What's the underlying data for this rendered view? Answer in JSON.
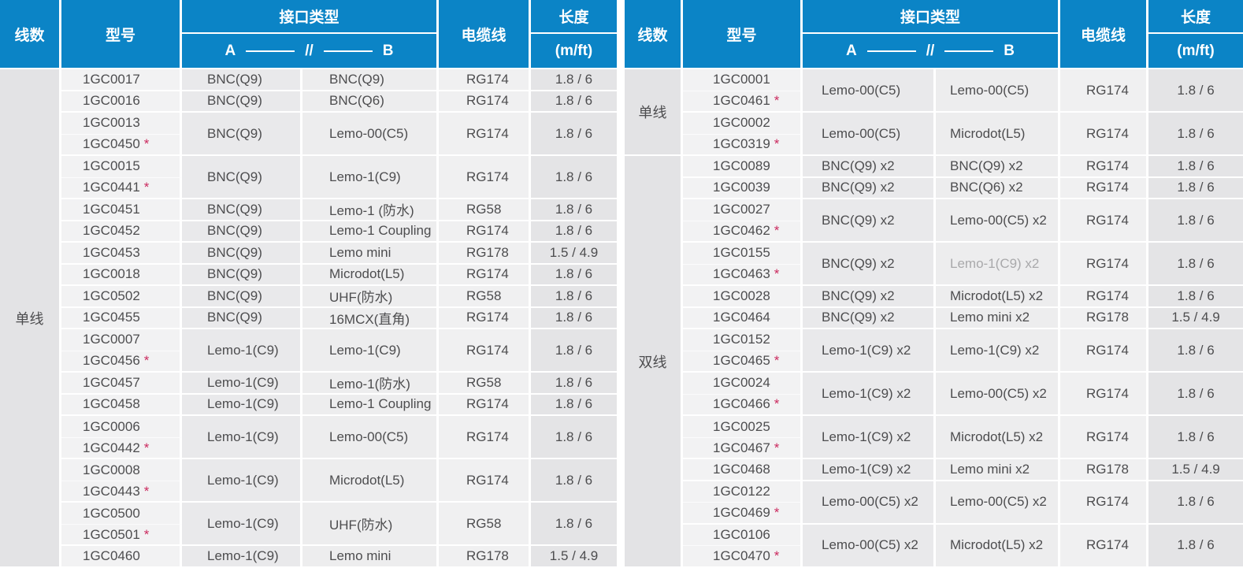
{
  "colors": {
    "header_bg": "#0b84c6",
    "header_text": "#ffffff",
    "body_text": "#4d4d4f",
    "muted_text": "#a9a9ab",
    "star": "#cb2a5f",
    "column_bg": {
      "line_count": "#e3e3e5",
      "model": "#f2f2f3",
      "connector_a": "#e9e9eb",
      "connector_b": "#ededee",
      "cable": "#f0f0f1",
      "length": "#e4e4e6"
    }
  },
  "header": {
    "line_count": "线数",
    "model": "型号",
    "interface_type": "接口类型",
    "a_label": "A",
    "ab_separator": "//",
    "b_label": "B",
    "cable": "电缆线",
    "length": "长度",
    "length_unit": "(m/ft)"
  },
  "tables": [
    {
      "id": "left",
      "sections": [
        {
          "line_count_label": "单线",
          "groups": [
            {
              "models": [
                {
                  "id": "1GC0017",
                  "star": false
                }
              ],
              "a": "BNC(Q9)",
              "b": "BNC(Q9)",
              "b_muted": false,
              "cable": "RG174",
              "length": "1.8 / 6"
            },
            {
              "models": [
                {
                  "id": "1GC0016",
                  "star": false
                }
              ],
              "a": "BNC(Q9)",
              "b": "BNC(Q6)",
              "b_muted": false,
              "cable": "RG174",
              "length": "1.8 / 6"
            },
            {
              "models": [
                {
                  "id": "1GC0013",
                  "star": false
                },
                {
                  "id": "1GC0450",
                  "star": true
                }
              ],
              "a": "BNC(Q9)",
              "b": "Lemo-00(C5)",
              "b_muted": false,
              "cable": "RG174",
              "length": "1.8 / 6"
            },
            {
              "models": [
                {
                  "id": "1GC0015",
                  "star": false
                },
                {
                  "id": "1GC0441",
                  "star": true
                }
              ],
              "a": "BNC(Q9)",
              "b": "Lemo-1(C9)",
              "b_muted": false,
              "cable": "RG174",
              "length": "1.8 / 6"
            },
            {
              "models": [
                {
                  "id": "1GC0451",
                  "star": false
                }
              ],
              "a": "BNC(Q9)",
              "b": "Lemo-1 (防水)",
              "b_muted": false,
              "cable": "RG58",
              "length": "1.8 / 6"
            },
            {
              "models": [
                {
                  "id": "1GC0452",
                  "star": false
                }
              ],
              "a": "BNC(Q9)",
              "b": "Lemo-1 Coupling",
              "b_muted": false,
              "cable": "RG174",
              "length": "1.8 / 6"
            },
            {
              "models": [
                {
                  "id": "1GC0453",
                  "star": false
                }
              ],
              "a": "BNC(Q9)",
              "b": "Lemo mini",
              "b_muted": false,
              "cable": "RG178",
              "length": "1.5 / 4.9"
            },
            {
              "models": [
                {
                  "id": "1GC0018",
                  "star": false
                }
              ],
              "a": "BNC(Q9)",
              "b": "Microdot(L5)",
              "b_muted": false,
              "cable": "RG174",
              "length": "1.8 / 6"
            },
            {
              "models": [
                {
                  "id": "1GC0502",
                  "star": false
                }
              ],
              "a": "BNC(Q9)",
              "b": "UHF(防水)",
              "b_muted": false,
              "cable": "RG58",
              "length": "1.8 / 6"
            },
            {
              "models": [
                {
                  "id": "1GC0455",
                  "star": false
                }
              ],
              "a": "BNC(Q9)",
              "b": "16MCX(直角)",
              "b_muted": false,
              "cable": "RG174",
              "length": "1.8 / 6"
            },
            {
              "models": [
                {
                  "id": "1GC0007",
                  "star": false
                },
                {
                  "id": "1GC0456",
                  "star": true
                }
              ],
              "a": "Lemo-1(C9)",
              "b": "Lemo-1(C9)",
              "b_muted": false,
              "cable": "RG174",
              "length": "1.8 / 6"
            },
            {
              "models": [
                {
                  "id": "1GC0457",
                  "star": false
                }
              ],
              "a": "Lemo-1(C9)",
              "b": "Lemo-1(防水)",
              "b_muted": false,
              "cable": "RG58",
              "length": "1.8 / 6"
            },
            {
              "models": [
                {
                  "id": "1GC0458",
                  "star": false
                }
              ],
              "a": "Lemo-1(C9)",
              "b": "Lemo-1 Coupling",
              "b_muted": false,
              "cable": "RG174",
              "length": "1.8 / 6"
            },
            {
              "models": [
                {
                  "id": "1GC0006",
                  "star": false
                },
                {
                  "id": "1GC0442",
                  "star": true
                }
              ],
              "a": "Lemo-1(C9)",
              "b": "Lemo-00(C5)",
              "b_muted": false,
              "cable": "RG174",
              "length": "1.8 / 6"
            },
            {
              "models": [
                {
                  "id": "1GC0008",
                  "star": false
                },
                {
                  "id": "1GC0443",
                  "star": true
                }
              ],
              "a": "Lemo-1(C9)",
              "b": "Microdot(L5)",
              "b_muted": false,
              "cable": "RG174",
              "length": "1.8 / 6"
            },
            {
              "models": [
                {
                  "id": "1GC0500",
                  "star": false
                },
                {
                  "id": "1GC0501",
                  "star": true
                }
              ],
              "a": "Lemo-1(C9)",
              "b": "UHF(防水)",
              "b_muted": false,
              "cable": "RG58",
              "length": "1.8 / 6"
            },
            {
              "models": [
                {
                  "id": "1GC0460",
                  "star": false
                }
              ],
              "a": "Lemo-1(C9)",
              "b": "Lemo mini",
              "b_muted": false,
              "cable": "RG178",
              "length": "1.5 / 4.9"
            }
          ]
        }
      ]
    },
    {
      "id": "right",
      "sections": [
        {
          "line_count_label": "单线",
          "groups": [
            {
              "models": [
                {
                  "id": "1GC0001",
                  "star": false
                },
                {
                  "id": "1GC0461",
                  "star": true
                }
              ],
              "a": "Lemo-00(C5)",
              "b": "Lemo-00(C5)",
              "b_muted": false,
              "cable": "RG174",
              "length": "1.8 / 6"
            },
            {
              "models": [
                {
                  "id": "1GC0002",
                  "star": false
                },
                {
                  "id": "1GC0319",
                  "star": true
                }
              ],
              "a": "Lemo-00(C5)",
              "b": "Microdot(L5)",
              "b_muted": false,
              "cable": "RG174",
              "length": "1.8 / 6"
            }
          ]
        },
        {
          "line_count_label": "双线",
          "groups": [
            {
              "models": [
                {
                  "id": "1GC0089",
                  "star": false
                }
              ],
              "a": "BNC(Q9) x2",
              "b": "BNC(Q9) x2",
              "b_muted": false,
              "cable": "RG174",
              "length": "1.8 / 6"
            },
            {
              "models": [
                {
                  "id": "1GC0039",
                  "star": false
                }
              ],
              "a": "BNC(Q9) x2",
              "b": "BNC(Q6) x2",
              "b_muted": false,
              "cable": "RG174",
              "length": "1.8 / 6"
            },
            {
              "models": [
                {
                  "id": "1GC0027",
                  "star": false
                },
                {
                  "id": "1GC0462",
                  "star": true
                }
              ],
              "a": "BNC(Q9) x2",
              "b": "Lemo-00(C5) x2",
              "b_muted": false,
              "cable": "RG174",
              "length": "1.8 / 6"
            },
            {
              "models": [
                {
                  "id": "1GC0155",
                  "star": false
                },
                {
                  "id": "1GC0463",
                  "star": true
                }
              ],
              "a": "BNC(Q9) x2",
              "b": "Lemo-1(C9) x2",
              "b_muted": true,
              "cable": "RG174",
              "length": "1.8 / 6"
            },
            {
              "models": [
                {
                  "id": "1GC0028",
                  "star": false
                }
              ],
              "a": "BNC(Q9) x2",
              "b": "Microdot(L5) x2",
              "b_muted": false,
              "cable": "RG174",
              "length": "1.8 / 6"
            },
            {
              "models": [
                {
                  "id": "1GC0464",
                  "star": false
                }
              ],
              "a": "BNC(Q9) x2",
              "b": "Lemo mini x2",
              "b_muted": false,
              "cable": "RG178",
              "length": "1.5 / 4.9"
            },
            {
              "models": [
                {
                  "id": "1GC0152",
                  "star": false
                },
                {
                  "id": "1GC0465",
                  "star": true
                }
              ],
              "a": "Lemo-1(C9) x2",
              "b": "Lemo-1(C9) x2",
              "b_muted": false,
              "cable": "RG174",
              "length": "1.8 / 6"
            },
            {
              "models": [
                {
                  "id": "1GC0024",
                  "star": false
                },
                {
                  "id": "1GC0466",
                  "star": true
                }
              ],
              "a": "Lemo-1(C9) x2",
              "b": "Lemo-00(C5) x2",
              "b_muted": false,
              "cable": "RG174",
              "length": "1.8 / 6"
            },
            {
              "models": [
                {
                  "id": "1GC0025",
                  "star": false
                },
                {
                  "id": "1GC0467",
                  "star": true
                }
              ],
              "a": "Lemo-1(C9) x2",
              "b": "Microdot(L5) x2",
              "b_muted": false,
              "cable": "RG174",
              "length": "1.8 / 6"
            },
            {
              "models": [
                {
                  "id": "1GC0468",
                  "star": false
                }
              ],
              "a": "Lemo-1(C9) x2",
              "b": "Lemo mini x2",
              "b_muted": false,
              "cable": "RG178",
              "length": "1.5 / 4.9"
            },
            {
              "models": [
                {
                  "id": "1GC0122",
                  "star": false
                },
                {
                  "id": "1GC0469",
                  "star": true
                }
              ],
              "a": "Lemo-00(C5) x2",
              "b": "Lemo-00(C5) x2",
              "b_muted": false,
              "cable": "RG174",
              "length": "1.8 / 6"
            },
            {
              "models": [
                {
                  "id": "1GC0106",
                  "star": false
                },
                {
                  "id": "1GC0470",
                  "star": true
                }
              ],
              "a": "Lemo-00(C5) x2",
              "b": "Microdot(L5) x2",
              "b_muted": false,
              "cable": "RG174",
              "length": "1.8 / 6"
            }
          ]
        }
      ]
    }
  ]
}
